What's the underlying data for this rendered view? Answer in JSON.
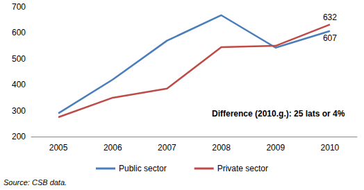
{
  "chart_data": {
    "type": "line",
    "categories": [
      "2005",
      "2006",
      "2007",
      "2008",
      "2009",
      "2010"
    ],
    "series": [
      {
        "name": "Public sector",
        "color": "#4a7ebb",
        "values": [
          290,
          420,
          570,
          668,
          543,
          607
        ],
        "value_labels": [
          null,
          null,
          null,
          null,
          null,
          "607"
        ]
      },
      {
        "name": "Private sector",
        "color": "#be4b48",
        "values": [
          275,
          350,
          385,
          545,
          550,
          632
        ],
        "value_labels": [
          null,
          null,
          null,
          null,
          null,
          "632"
        ]
      }
    ],
    "ylim": [
      200,
      700
    ],
    "yticks": [
      200,
      300,
      400,
      500,
      600,
      700
    ],
    "grid": false,
    "legend": "bottom",
    "annotations": [
      "Difference (2010.g.): 25 lats or 4%",
      "Source: CSB data."
    ]
  }
}
